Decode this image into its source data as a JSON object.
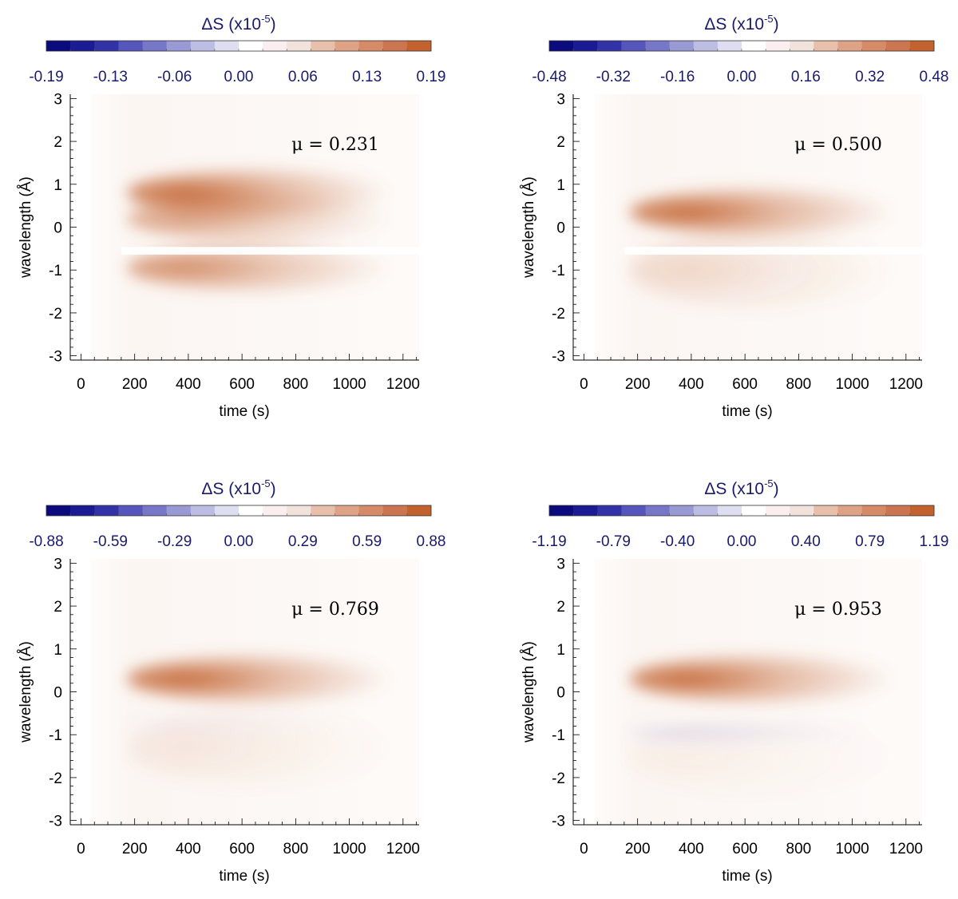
{
  "chart_data": [
    {
      "type": "heatmap",
      "colorbar": {
        "title": "ΔS (x10",
        "title_exp": "-5",
        "title_close": ")",
        "ticks": [
          "-0.19",
          "-0.13",
          "-0.06",
          "0.00",
          "0.06",
          "0.13",
          "0.19"
        ],
        "range": [
          -0.19,
          0.19
        ]
      },
      "annotation": "μ = 0.231",
      "mu": 0.231,
      "xlabel": "time (s)",
      "ylabel": "wavelength (Å)",
      "x_ticks": [
        "0",
        "200",
        "400",
        "600",
        "800",
        "1000",
        "1200"
      ],
      "y_ticks": [
        "3",
        "2",
        "1",
        "0",
        "-1",
        "-2",
        "-3"
      ],
      "xlim": [
        -40,
        1260
      ],
      "ylim": [
        -3.1,
        3.1
      ],
      "features": [
        {
          "kind": "positive",
          "t_center": 280,
          "w_center": 0.8,
          "amplitude": 0.95
        },
        {
          "kind": "positive",
          "t_center": 280,
          "w_center": 0.2,
          "amplitude": 0.6
        },
        {
          "kind": "positive",
          "t_center": 280,
          "w_center": -0.95,
          "amplitude": 0.72
        },
        {
          "kind": "gap",
          "w_center": -0.55
        }
      ]
    },
    {
      "type": "heatmap",
      "colorbar": {
        "title": "ΔS (x10",
        "title_exp": "-5",
        "title_close": ")",
        "ticks": [
          "-0.48",
          "-0.32",
          "-0.16",
          "0.00",
          "0.16",
          "0.32",
          "0.48"
        ],
        "range": [
          -0.48,
          0.48
        ]
      },
      "annotation": "μ = 0.500",
      "mu": 0.5,
      "xlabel": "time (s)",
      "ylabel": "wavelength (Å)",
      "x_ticks": [
        "0",
        "200",
        "400",
        "600",
        "800",
        "1000",
        "1200"
      ],
      "y_ticks": [
        "3",
        "2",
        "1",
        "0",
        "-1",
        "-2",
        "-3"
      ],
      "xlim": [
        -40,
        1260
      ],
      "ylim": [
        -3.1,
        3.1
      ],
      "features": [
        {
          "kind": "positive",
          "t_center": 280,
          "w_center": 0.35,
          "amplitude": 0.95
        },
        {
          "kind": "positive",
          "t_center": 300,
          "w_center": -1.0,
          "amplitude": 0.22
        },
        {
          "kind": "gap",
          "w_center": -0.55
        }
      ]
    },
    {
      "type": "heatmap",
      "colorbar": {
        "title": "ΔS (x10",
        "title_exp": "-5",
        "title_close": ")",
        "ticks": [
          "-0.88",
          "-0.59",
          "-0.29",
          "0.00",
          "0.29",
          "0.59",
          "0.88"
        ],
        "range": [
          -0.88,
          0.88
        ]
      },
      "annotation": "μ = 0.769",
      "mu": 0.769,
      "xlabel": "time (s)",
      "ylabel": "wavelength (Å)",
      "x_ticks": [
        "0",
        "200",
        "400",
        "600",
        "800",
        "1000",
        "1200"
      ],
      "y_ticks": [
        "3",
        "2",
        "1",
        "0",
        "-1",
        "-2",
        "-3"
      ],
      "xlim": [
        -40,
        1260
      ],
      "ylim": [
        -3.1,
        3.1
      ],
      "features": [
        {
          "kind": "positive",
          "t_center": 280,
          "w_center": 0.3,
          "amplitude": 0.95
        },
        {
          "kind": "positive",
          "t_center": 300,
          "w_center": -1.3,
          "amplitude": 0.12
        },
        {
          "kind": "negative",
          "t_center": 500,
          "w_center": -0.75,
          "amplitude": 0.05
        }
      ]
    },
    {
      "type": "heatmap",
      "colorbar": {
        "title": "ΔS (x10",
        "title_exp": "-5",
        "title_close": ")",
        "ticks": [
          "-1.19",
          "-0.79",
          "-0.40",
          "0.00",
          "0.40",
          "0.79",
          "1.19"
        ],
        "range": [
          -1.19,
          1.19
        ]
      },
      "annotation": "μ = 0.953",
      "mu": 0.953,
      "xlabel": "time (s)",
      "ylabel": "wavelength (Å)",
      "x_ticks": [
        "0",
        "200",
        "400",
        "600",
        "800",
        "1000",
        "1200"
      ],
      "y_ticks": [
        "3",
        "2",
        "1",
        "0",
        "-1",
        "-2",
        "-3"
      ],
      "xlim": [
        -40,
        1260
      ],
      "ylim": [
        -3.1,
        3.1
      ],
      "features": [
        {
          "kind": "positive",
          "t_center": 280,
          "w_center": 0.3,
          "amplitude": 0.95
        },
        {
          "kind": "negative",
          "t_center": 450,
          "w_center": -0.95,
          "amplitude": 0.22
        },
        {
          "kind": "positive",
          "t_center": 300,
          "w_center": -1.5,
          "amplitude": 0.06
        }
      ]
    }
  ],
  "colors": {
    "colorbar_steps": [
      "#0b0b7d",
      "#1b1b94",
      "#3333a8",
      "#5555bb",
      "#7777c8",
      "#9999d4",
      "#bdbde3",
      "#dedef0",
      "#ffffff",
      "#faeef0",
      "#f1e2dc",
      "#e7bfaa",
      "#dea387",
      "#d58a68",
      "#cb7650",
      "#c2622f"
    ],
    "positive": "#c2622f",
    "negative": "#7777c8",
    "text_cb": "#1a1a6e"
  }
}
